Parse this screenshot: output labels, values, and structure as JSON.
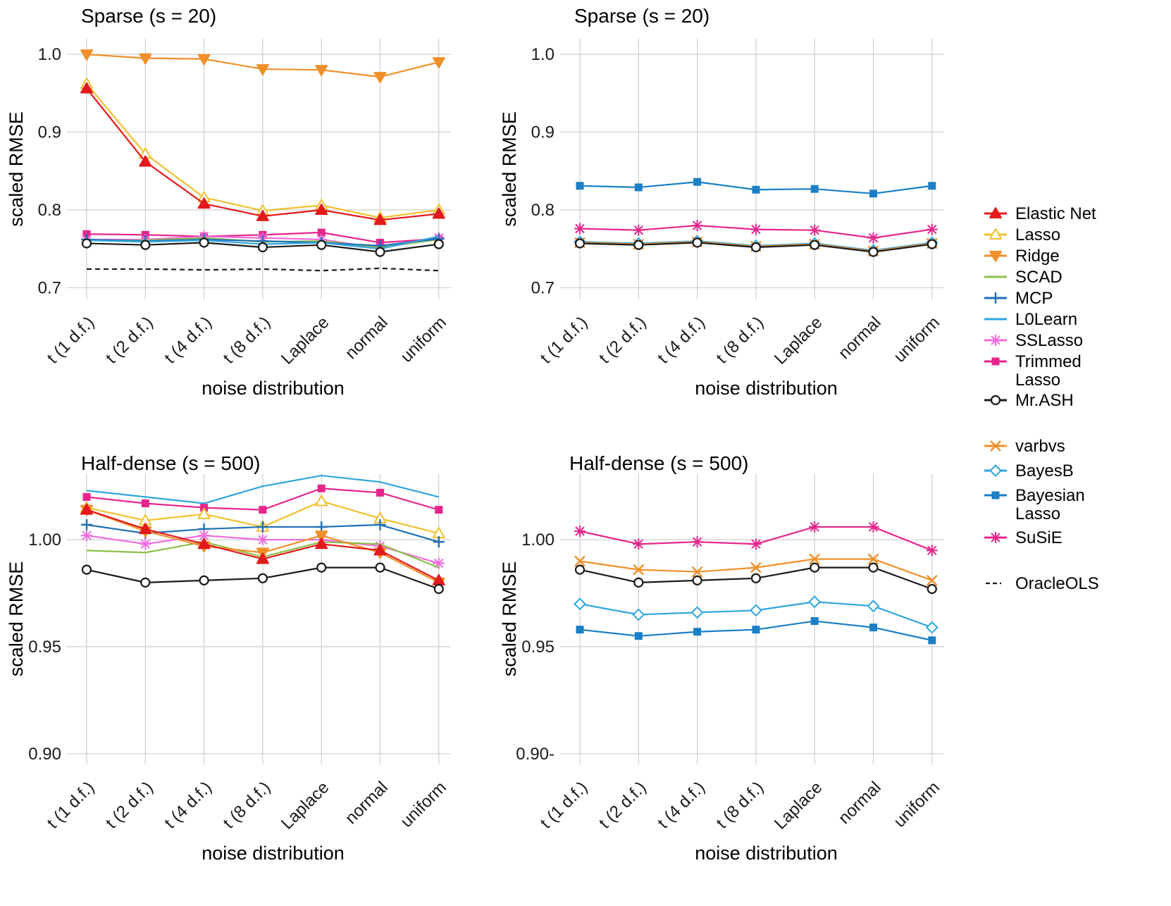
{
  "colors": {
    "Elastic Net": "#e31a1c",
    "Lasso": "#f2c02e",
    "Ridge": "#f0902a",
    "SCAD": "#8cc04a",
    "MCP": "#1f6fb5",
    "L0Learn": "#2ea6de",
    "SSLasso": "#f06ce0",
    "Trimmed Lasso": "#e6258c",
    "Mr.ASH": "#1a1a1a",
    "varbvs": "#f0902a",
    "BayesB": "#2ea6de",
    "Bayesian Lasso": "#1a7fc4",
    "SuSiE": "#e6258c",
    "OracleOLS": "#1a1a1a"
  },
  "markers": {
    "Elastic Net": "tri-up-filled",
    "Lasso": "tri-up-open",
    "Ridge": "tri-down-filled",
    "SCAD": "none",
    "MCP": "plus",
    "L0Learn": "none",
    "SSLasso": "asterisk",
    "Trimmed Lasso": "square-filled",
    "Mr.ASH": "circle-open",
    "varbvs": "x",
    "BayesB": "diamond-open",
    "Bayesian Lasso": "square-filled",
    "SuSiE": "asterisk",
    "OracleOLS": "dashed"
  },
  "legend": {
    "group1": [
      "Elastic Net",
      "Lasso",
      "Ridge",
      "SCAD",
      "MCP",
      "L0Learn",
      "SSLasso",
      "Trimmed Lasso",
      "Mr.ASH"
    ],
    "group2": [
      "varbvs",
      "BayesB",
      "Bayesian Lasso",
      "SuSiE"
    ],
    "group3": [
      "OracleOLS"
    ]
  },
  "chart_data": [
    {
      "type": "line",
      "title": "Sparse (s = 20)",
      "xlabel": "noise distribution",
      "ylabel": "scaled RMSE",
      "categories": [
        "t (1 d.f.)",
        "t (2 d.f.)",
        "t (4 d.f.)",
        "t (8 d.f.)",
        "Laplace",
        "normal",
        "uniform"
      ],
      "ylim": [
        0.685,
        1.02
      ],
      "yticks": [
        0.7,
        0.8,
        0.9,
        1.0
      ],
      "ytick_labels": [
        "0.7",
        "0.8",
        "0.9",
        "1.0"
      ],
      "series": [
        {
          "name": "Ridge",
          "values": [
            1.0,
            0.995,
            0.994,
            0.981,
            0.98,
            0.971,
            0.99
          ]
        },
        {
          "name": "Lasso",
          "values": [
            0.962,
            0.872,
            0.816,
            0.799,
            0.806,
            0.79,
            0.8
          ]
        },
        {
          "name": "Elastic Net",
          "values": [
            0.956,
            0.862,
            0.808,
            0.792,
            0.8,
            0.787,
            0.795
          ]
        },
        {
          "name": "Trimmed Lasso",
          "values": [
            0.769,
            0.768,
            0.766,
            0.768,
            0.771,
            0.758,
            0.763
          ]
        },
        {
          "name": "SSLasso",
          "values": [
            0.762,
            0.762,
            0.766,
            0.764,
            0.762,
            0.751,
            0.764
          ]
        },
        {
          "name": "SCAD",
          "values": [
            0.761,
            0.761,
            0.764,
            0.759,
            0.76,
            0.752,
            0.762
          ]
        },
        {
          "name": "MCP",
          "values": [
            0.762,
            0.76,
            0.762,
            0.76,
            0.758,
            0.754,
            0.763
          ]
        },
        {
          "name": "L0Learn",
          "values": [
            0.761,
            0.759,
            0.761,
            0.756,
            0.758,
            0.75,
            0.766
          ]
        },
        {
          "name": "Mr.ASH",
          "values": [
            0.757,
            0.755,
            0.758,
            0.752,
            0.755,
            0.746,
            0.756
          ]
        },
        {
          "name": "OracleOLS",
          "values": [
            0.724,
            0.724,
            0.723,
            0.724,
            0.722,
            0.725,
            0.722
          ]
        }
      ]
    },
    {
      "type": "line",
      "title": "Sparse (s = 20)",
      "xlabel": "noise distribution",
      "ylabel": "scaled RMSE",
      "categories": [
        "t (1 d.f.)",
        "t (2 d.f.)",
        "t (4 d.f.)",
        "t (8 d.f.)",
        "Laplace",
        "normal",
        "uniform"
      ],
      "ylim": [
        0.685,
        1.02
      ],
      "yticks": [
        0.7,
        0.8,
        0.9,
        1.0
      ],
      "ytick_labels": [
        "0.7",
        "0.8",
        "0.9",
        "1.0"
      ],
      "series": [
        {
          "name": "Bayesian Lasso",
          "values": [
            0.831,
            0.829,
            0.836,
            0.826,
            0.827,
            0.821,
            0.831
          ]
        },
        {
          "name": "SuSiE",
          "values": [
            0.776,
            0.774,
            0.78,
            0.775,
            0.774,
            0.764,
            0.775
          ]
        },
        {
          "name": "BayesB",
          "values": [
            0.759,
            0.757,
            0.76,
            0.754,
            0.757,
            0.748,
            0.758
          ]
        },
        {
          "name": "varbvs",
          "values": [
            0.758,
            0.756,
            0.759,
            0.753,
            0.756,
            0.747,
            0.757
          ]
        },
        {
          "name": "Mr.ASH",
          "values": [
            0.757,
            0.755,
            0.758,
            0.752,
            0.755,
            0.746,
            0.756
          ]
        }
      ]
    },
    {
      "type": "line",
      "title": "Half-dense (s = 500)",
      "xlabel": "noise distribution",
      "ylabel": "scaled RMSE",
      "categories": [
        "t (1 d.f.)",
        "t (2 d.f.)",
        "t (4 d.f.)",
        "t (8 d.f.)",
        "Laplace",
        "normal",
        "uniform"
      ],
      "ylim": [
        0.895,
        1.031
      ],
      "yticks": [
        0.9,
        0.95,
        1.0
      ],
      "ytick_labels": [
        "0.90",
        "0.95",
        "1.00"
      ],
      "series": [
        {
          "name": "L0Learn",
          "values": [
            1.023,
            1.02,
            1.017,
            1.025,
            1.03,
            1.027,
            1.02
          ]
        },
        {
          "name": "Trimmed Lasso",
          "values": [
            1.02,
            1.017,
            1.015,
            1.014,
            1.024,
            1.022,
            1.014
          ]
        },
        {
          "name": "Lasso",
          "values": [
            1.015,
            1.009,
            1.012,
            1.006,
            1.018,
            1.01,
            1.003
          ]
        },
        {
          "name": "MCP",
          "values": [
            1.007,
            1.003,
            1.005,
            1.006,
            1.006,
            1.007,
            0.999
          ]
        },
        {
          "name": "SSLasso",
          "values": [
            1.002,
            0.998,
            1.002,
            1.0,
            1.0,
            0.997,
            0.989
          ]
        },
        {
          "name": "SCAD",
          "values": [
            0.995,
            0.994,
            0.999,
            0.992,
            0.999,
            0.998,
            0.987
          ]
        },
        {
          "name": "Ridge",
          "values": [
            1.014,
            1.004,
            0.997,
            0.994,
            1.002,
            0.994,
            0.98
          ]
        },
        {
          "name": "Elastic Net",
          "values": [
            1.014,
            1.005,
            0.998,
            0.991,
            0.998,
            0.995,
            0.981
          ]
        },
        {
          "name": "Mr.ASH",
          "values": [
            0.986,
            0.98,
            0.981,
            0.982,
            0.987,
            0.987,
            0.977
          ]
        }
      ]
    },
    {
      "type": "line",
      "title": "Half-dense (s = 500)",
      "xlabel": "noise distribution",
      "ylabel": "scaled RMSE",
      "categories": [
        "t (1 d.f.)",
        "t (2 d.f.)",
        "t (4 d.f.)",
        "t (8 d.f.)",
        "Laplace",
        "normal",
        "uniform"
      ],
      "ylim": [
        0.895,
        1.031
      ],
      "yticks": [
        0.9,
        0.95,
        1.0
      ],
      "ytick_labels": [
        "0.90-",
        "0.95",
        "1.00"
      ],
      "series": [
        {
          "name": "SuSiE",
          "values": [
            1.004,
            0.998,
            0.999,
            0.998,
            1.006,
            1.006,
            0.995
          ]
        },
        {
          "name": "varbvs",
          "values": [
            0.99,
            0.986,
            0.985,
            0.987,
            0.991,
            0.991,
            0.981
          ]
        },
        {
          "name": "Mr.ASH",
          "values": [
            0.986,
            0.98,
            0.981,
            0.982,
            0.987,
            0.987,
            0.977
          ]
        },
        {
          "name": "BayesB",
          "values": [
            0.97,
            0.965,
            0.966,
            0.967,
            0.971,
            0.969,
            0.959
          ]
        },
        {
          "name": "Bayesian Lasso",
          "values": [
            0.958,
            0.955,
            0.957,
            0.958,
            0.962,
            0.959,
            0.953
          ]
        }
      ]
    }
  ]
}
